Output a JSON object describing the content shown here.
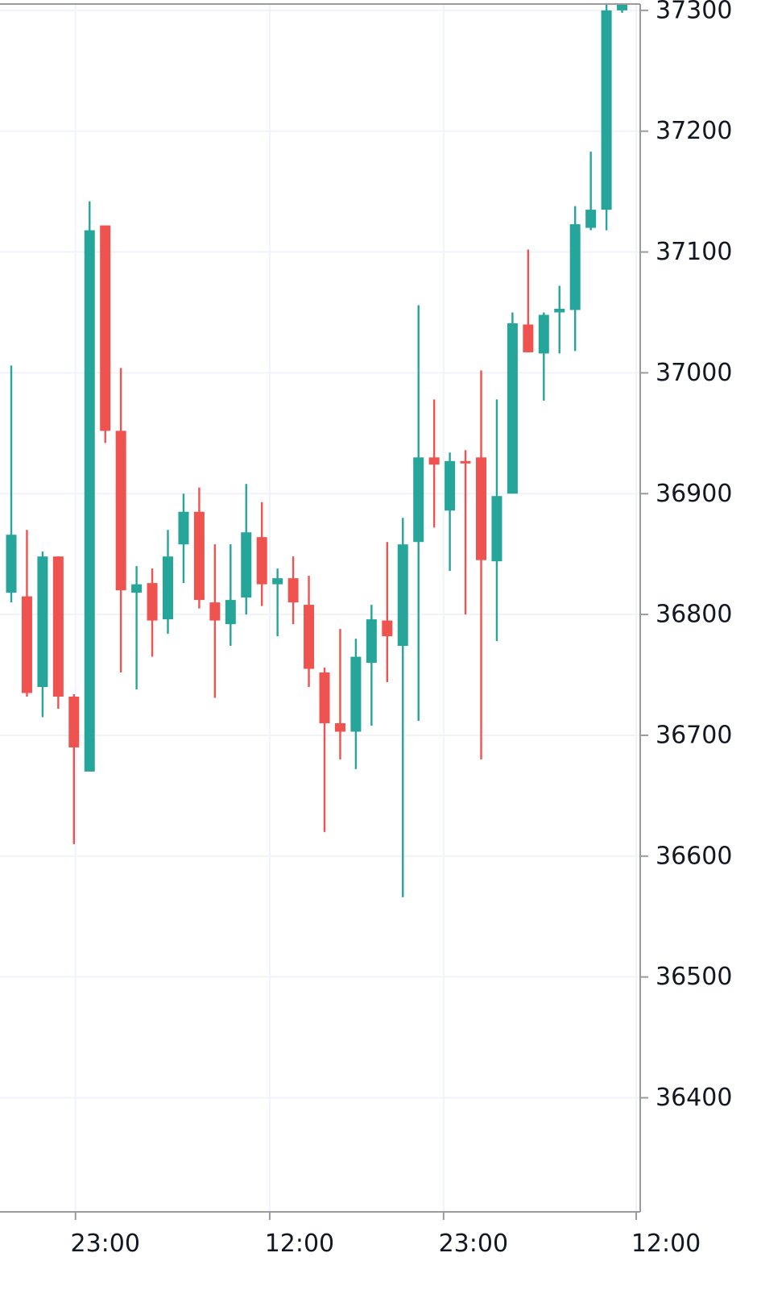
{
  "chart_data": {
    "type": "candlestick",
    "colors": {
      "up": "#26a69a",
      "down": "#ef5350",
      "grid": "#f0f3fa",
      "axis": "#9b9b9b",
      "text": "#131722"
    },
    "grid": true,
    "y_axis_position": "right",
    "y_ticks": [
      36400,
      36500,
      36600,
      36700,
      36800,
      36900,
      37000,
      37100,
      37200,
      37300
    ],
    "y_tick_labels": [
      "36400",
      "36500",
      "36600",
      "36700",
      "36800",
      "36900",
      "37000",
      "37100",
      "37200",
      "37300"
    ],
    "ylim": [
      36320,
      37308
    ],
    "x_ticks": [
      {
        "label": "23:00",
        "index": 4.1
      },
      {
        "label": "12:00",
        "index": 16.5
      },
      {
        "label": "23:00",
        "index": 27.6
      },
      {
        "label": "12:00",
        "index": 39.9
      }
    ],
    "candles": [
      {
        "open": 36818,
        "high": 37006,
        "low": 36810,
        "close": 36866
      },
      {
        "open": 36815,
        "high": 36870,
        "low": 36732,
        "close": 36735
      },
      {
        "open": 36740,
        "high": 36852,
        "low": 36715,
        "close": 36848
      },
      {
        "open": 36848,
        "high": 36848,
        "low": 36722,
        "close": 36732
      },
      {
        "open": 36732,
        "high": 36734,
        "low": 36610,
        "close": 36690
      },
      {
        "open": 36670,
        "high": 37142,
        "low": 36670,
        "close": 37118
      },
      {
        "open": 37122,
        "high": 37122,
        "low": 36942,
        "close": 36952
      },
      {
        "open": 36952,
        "high": 37004,
        "low": 36752,
        "close": 36820
      },
      {
        "open": 36818,
        "high": 36840,
        "low": 36738,
        "close": 36825
      },
      {
        "open": 36826,
        "high": 36838,
        "low": 36765,
        "close": 36795
      },
      {
        "open": 36796,
        "high": 36870,
        "low": 36784,
        "close": 36848
      },
      {
        "open": 36858,
        "high": 36900,
        "low": 36826,
        "close": 36885
      },
      {
        "open": 36885,
        "high": 36905,
        "low": 36805,
        "close": 36812
      },
      {
        "open": 36810,
        "high": 36858,
        "low": 36731,
        "close": 36795
      },
      {
        "open": 36792,
        "high": 36858,
        "low": 36774,
        "close": 36812
      },
      {
        "open": 36814,
        "high": 36908,
        "low": 36800,
        "close": 36868
      },
      {
        "open": 36864,
        "high": 36893,
        "low": 36807,
        "close": 36825
      },
      {
        "open": 36825,
        "high": 36838,
        "low": 36782,
        "close": 36830
      },
      {
        "open": 36830,
        "high": 36848,
        "low": 36792,
        "close": 36810
      },
      {
        "open": 36808,
        "high": 36832,
        "low": 36740,
        "close": 36755
      },
      {
        "open": 36752,
        "high": 36756,
        "low": 36620,
        "close": 36710
      },
      {
        "open": 36710,
        "high": 36788,
        "low": 36680,
        "close": 36703
      },
      {
        "open": 36703,
        "high": 36780,
        "low": 36672,
        "close": 36765
      },
      {
        "open": 36760,
        "high": 36808,
        "low": 36708,
        "close": 36796
      },
      {
        "open": 36795,
        "high": 36860,
        "low": 36744,
        "close": 36782
      },
      {
        "open": 36774,
        "high": 36880,
        "low": 36566,
        "close": 36858
      },
      {
        "open": 36860,
        "high": 37056,
        "low": 36712,
        "close": 36930
      },
      {
        "open": 36930,
        "high": 36978,
        "low": 36872,
        "close": 36924
      },
      {
        "open": 36886,
        "high": 36934,
        "low": 36836,
        "close": 36927
      },
      {
        "open": 36927,
        "high": 36936,
        "low": 36800,
        "close": 36926
      },
      {
        "open": 36930,
        "high": 37002,
        "low": 36680,
        "close": 36845
      },
      {
        "open": 36844,
        "high": 36978,
        "low": 36778,
        "close": 36898
      },
      {
        "open": 36900,
        "high": 37050,
        "low": 36900,
        "close": 37041
      },
      {
        "open": 37040,
        "high": 37102,
        "low": 37017,
        "close": 37017
      },
      {
        "open": 37016,
        "high": 37050,
        "low": 36977,
        "close": 37048
      },
      {
        "open": 37050,
        "high": 37072,
        "low": 37016,
        "close": 37053
      },
      {
        "open": 37052,
        "high": 37138,
        "low": 37018,
        "close": 37123
      },
      {
        "open": 37120,
        "high": 37183,
        "low": 37118,
        "close": 37135
      },
      {
        "open": 37135,
        "high": 37306,
        "low": 37118,
        "close": 37300
      },
      {
        "open": 37300,
        "high": 37306,
        "low": 37298,
        "close": 37305
      }
    ]
  }
}
